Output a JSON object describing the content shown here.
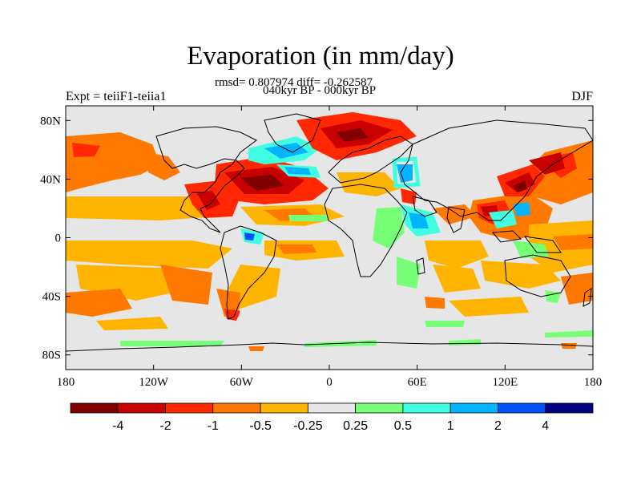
{
  "title": "Evaporation (in mm/day)",
  "stats_line1": "rmsd= 0.807974 diff= -0.262587",
  "stats_line2": "040kyr BP - 000kyr BP",
  "left_label": "Expt = teiiF1-teiia1",
  "right_label": "DJF",
  "x_ticks": [
    {
      "lon": -180,
      "label": "180"
    },
    {
      "lon": -120,
      "label": "120W"
    },
    {
      "lon": -60,
      "label": "60W"
    },
    {
      "lon": 0,
      "label": "0"
    },
    {
      "lon": 60,
      "label": "60E"
    },
    {
      "lon": 120,
      "label": "120E"
    },
    {
      "lon": 180,
      "label": "180"
    }
  ],
  "y_ticks": [
    {
      "lat": 80,
      "label": "80N"
    },
    {
      "lat": 40,
      "label": "40N"
    },
    {
      "lat": 0,
      "label": "0"
    },
    {
      "lat": -40,
      "label": "40S"
    },
    {
      "lat": -80,
      "label": "80S"
    }
  ],
  "colorbar": {
    "colors": [
      "#800000",
      "#c80000",
      "#ff2800",
      "#ff7800",
      "#ffb400",
      "#e6e6e6",
      "#78ff78",
      "#40ffe0",
      "#00b4ff",
      "#0050ff",
      "#000080"
    ],
    "labels": [
      "-4",
      "-2",
      "-1",
      "-0.5",
      "-0.25",
      "0.25",
      "0.5",
      "1",
      "2",
      "4"
    ]
  },
  "ocean_color": "#e6e6e6",
  "coastline_color": "#000000"
}
